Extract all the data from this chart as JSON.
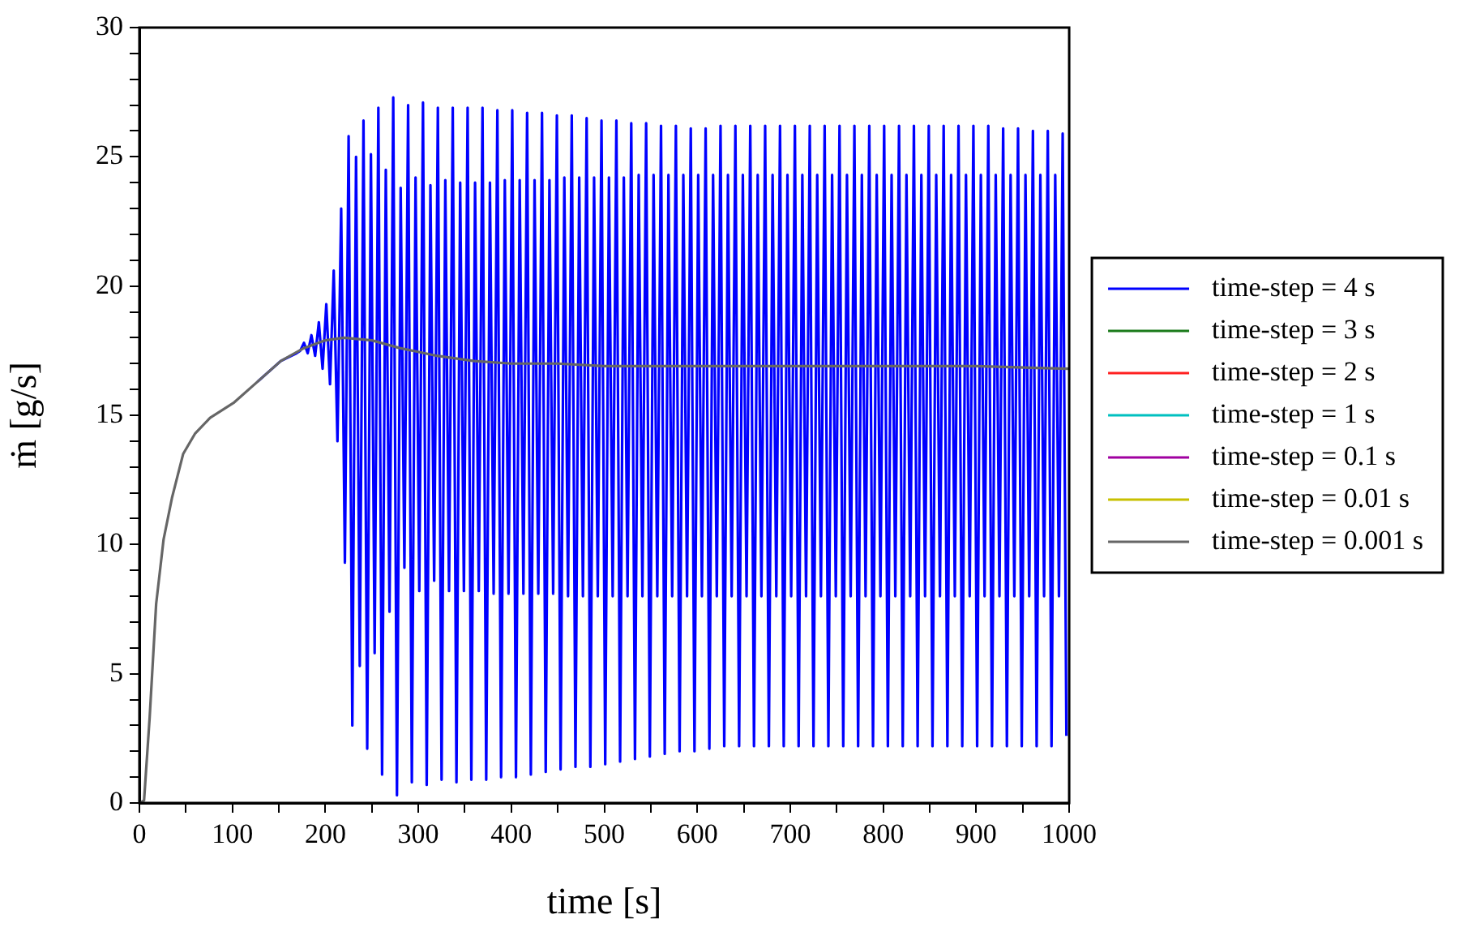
{
  "chart_data": {
    "type": "line",
    "xlabel": "time [s]",
    "ylabel": "ṁ [g/s]",
    "xlim": [
      0,
      1000
    ],
    "ylim": [
      0,
      30
    ],
    "xticks": [
      0,
      {
        "value": 50,
        "label": null
      },
      100,
      {
        "value": 150,
        "label": null
      },
      200,
      {
        "value": 250,
        "label": null
      },
      300,
      {
        "value": 350,
        "label": null
      },
      400,
      {
        "value": 450,
        "label": null
      },
      500,
      {
        "value": 550,
        "label": null
      },
      600,
      {
        "value": 650,
        "label": null
      },
      700,
      {
        "value": 750,
        "label": null
      },
      800,
      {
        "value": 850,
        "label": null
      },
      900,
      {
        "value": 950,
        "label": null
      },
      1000
    ],
    "yticks": [
      0,
      {
        "value": 1,
        "label": null
      },
      {
        "value": 2,
        "label": null
      },
      {
        "value": 3,
        "label": null
      },
      {
        "value": 4,
        "label": null
      },
      5,
      {
        "value": 6,
        "label": null
      },
      {
        "value": 7,
        "label": null
      },
      {
        "value": 8,
        "label": null
      },
      {
        "value": 9,
        "label": null
      },
      10,
      {
        "value": 11,
        "label": null
      },
      {
        "value": 12,
        "label": null
      },
      {
        "value": 13,
        "label": null
      },
      {
        "value": 14,
        "label": null
      },
      15,
      {
        "value": 16,
        "label": null
      },
      {
        "value": 17,
        "label": null
      },
      {
        "value": 18,
        "label": null
      },
      {
        "value": 19,
        "label": null
      },
      20,
      {
        "value": 21,
        "label": null
      },
      {
        "value": 22,
        "label": null
      },
      {
        "value": 23,
        "label": null
      },
      {
        "value": 24,
        "label": null
      },
      25,
      {
        "value": 26,
        "label": null
      },
      {
        "value": 27,
        "label": null
      },
      {
        "value": 28,
        "label": null
      },
      {
        "value": 29,
        "label": null
      },
      30
    ],
    "legend": "right",
    "x": [
      0,
      5,
      11,
      18,
      26,
      35,
      47,
      60,
      76,
      102,
      127,
      152,
      177,
      200,
      220,
      250,
      280,
      320,
      360,
      400,
      450,
      500,
      600,
      700,
      800,
      900,
      1000
    ],
    "series": [
      {
        "name": "time-step = 4 s",
        "color": "#0000ff",
        "x": [
          127,
          152,
          169,
          173,
          177,
          181,
          185,
          189,
          193,
          197,
          201,
          205,
          209,
          213,
          217,
          221,
          225,
          229,
          233,
          237,
          241,
          245,
          249,
          253,
          257,
          261,
          265,
          269,
          273,
          277,
          281,
          285,
          289,
          293,
          297,
          301,
          305,
          309,
          313,
          317,
          321,
          325,
          329,
          333,
          337,
          341,
          345,
          349,
          353,
          357,
          361,
          365,
          369,
          373,
          377,
          381,
          385,
          389,
          393,
          397,
          401,
          405,
          409,
          413,
          417,
          421,
          425,
          429,
          433,
          437,
          441,
          445,
          449,
          453,
          457,
          461,
          465,
          469,
          473,
          477,
          481,
          485,
          489,
          493,
          497,
          501,
          505,
          509,
          513,
          517,
          521,
          525,
          529,
          533,
          537,
          541,
          545,
          549,
          553,
          557,
          561,
          565,
          569,
          573,
          577,
          581,
          585,
          589,
          593,
          597,
          601,
          605,
          609,
          613,
          617,
          621,
          625,
          629,
          633,
          637,
          641,
          645,
          649,
          653,
          657,
          661,
          665,
          669,
          673,
          677,
          681,
          685,
          689,
          693,
          697,
          701,
          705,
          709,
          713,
          717,
          721,
          725,
          729,
          733,
          737,
          741,
          745,
          749,
          753,
          757,
          761,
          765,
          769,
          773,
          777,
          781,
          785,
          789,
          793,
          797,
          801,
          805,
          809,
          813,
          817,
          821,
          825,
          829,
          833,
          837,
          841,
          845,
          849,
          853,
          857,
          861,
          865,
          869,
          873,
          877,
          881,
          885,
          889,
          893,
          897,
          901,
          905,
          909,
          913,
          917,
          921,
          925,
          929,
          933,
          937,
          941,
          945,
          949,
          953,
          957,
          961,
          965,
          969,
          973,
          977,
          981,
          985,
          989,
          993,
          997
        ],
        "values": [
          16.3,
          17.1,
          17.4,
          17.5,
          17.8,
          17.4,
          18.1,
          17.3,
          18.6,
          16.8,
          19.3,
          16.2,
          20.6,
          14.0,
          23.0,
          9.3,
          25.8,
          3.0,
          25.0,
          5.3,
          26.4,
          2.1,
          25.1,
          5.8,
          26.9,
          1.1,
          24.5,
          7.4,
          27.3,
          0.3,
          23.8,
          9.1,
          27.0,
          0.8,
          24.2,
          8.2,
          27.1,
          0.7,
          23.9,
          8.6,
          26.9,
          0.9,
          24.1,
          8.2,
          26.9,
          0.8,
          24.0,
          8.2,
          26.9,
          0.9,
          24.0,
          8.2,
          26.9,
          0.9,
          24.0,
          8.1,
          26.8,
          1.0,
          24.1,
          8.1,
          26.8,
          1.0,
          24.1,
          8.1,
          26.7,
          1.1,
          24.1,
          8.1,
          26.7,
          1.2,
          24.1,
          8.1,
          26.6,
          1.3,
          24.2,
          8.0,
          26.6,
          1.4,
          24.2,
          8.0,
          26.5,
          1.4,
          24.2,
          8.0,
          26.4,
          1.5,
          24.2,
          8.0,
          26.4,
          1.6,
          24.2,
          8.0,
          26.3,
          1.7,
          24.3,
          8.0,
          26.3,
          1.8,
          24.3,
          8.0,
          26.2,
          1.9,
          24.3,
          8.0,
          26.2,
          2.0,
          24.3,
          8.0,
          26.1,
          2.0,
          24.3,
          8.0,
          26.1,
          2.1,
          24.3,
          8.0,
          26.2,
          2.2,
          24.3,
          8.0,
          26.2,
          2.2,
          24.3,
          8.0,
          26.2,
          2.2,
          24.3,
          8.0,
          26.2,
          2.2,
          24.3,
          8.0,
          26.2,
          2.2,
          24.3,
          8.0,
          26.2,
          2.2,
          24.3,
          8.0,
          26.2,
          2.2,
          24.3,
          8.0,
          26.2,
          2.2,
          24.3,
          8.0,
          26.2,
          2.2,
          24.3,
          8.0,
          26.2,
          2.2,
          24.3,
          8.0,
          26.2,
          2.2,
          24.3,
          8.0,
          26.2,
          2.2,
          24.3,
          8.0,
          26.2,
          2.2,
          24.3,
          8.0,
          26.2,
          2.2,
          24.3,
          8.0,
          26.2,
          2.2,
          24.3,
          8.0,
          26.2,
          2.2,
          24.3,
          8.0,
          26.2,
          2.2,
          24.3,
          8.0,
          26.2,
          2.2,
          24.3,
          8.0,
          26.2,
          2.2,
          24.3,
          8.0,
          26.1,
          2.2,
          24.3,
          8.0,
          26.1,
          2.2,
          24.3,
          8.0,
          26.0,
          2.2,
          24.3,
          8.0,
          26.0,
          2.2,
          24.3,
          8.0,
          25.9,
          2.6
        ]
      },
      {
        "name": "time-step = 3 s",
        "color": "#1a7a1a",
        "values": [
          null,
          null,
          null,
          null,
          null,
          null,
          null,
          null,
          null,
          null,
          null,
          null,
          null,
          null,
          null,
          null,
          null,
          null,
          null,
          null,
          null,
          null,
          null,
          null,
          null,
          null,
          null
        ]
      },
      {
        "name": "time-step = 2 s",
        "color": "#ff2020",
        "values": [
          null,
          null,
          null,
          null,
          null,
          null,
          null,
          null,
          null,
          null,
          null,
          null,
          null,
          null,
          null,
          null,
          null,
          null,
          null,
          null,
          null,
          null,
          null,
          null,
          null,
          null,
          null
        ]
      },
      {
        "name": "time-step = 1 s",
        "color": "#00c0c0",
        "values": [
          null,
          null,
          null,
          null,
          null,
          null,
          null,
          null,
          null,
          null,
          null,
          null,
          null,
          null,
          null,
          null,
          null,
          null,
          null,
          null,
          null,
          null,
          null,
          null,
          null,
          null,
          null
        ]
      },
      {
        "name": "time-step = 0.1 s",
        "color": "#a000a0",
        "values": [
          null,
          null,
          null,
          null,
          null,
          null,
          null,
          null,
          null,
          null,
          null,
          null,
          null,
          null,
          null,
          null,
          null,
          null,
          null,
          null,
          null,
          null,
          null,
          null,
          null,
          null,
          null
        ]
      },
      {
        "name": "time-step = 0.01 s",
        "color": "#c8c000",
        "values": [
          null,
          null,
          null,
          null,
          null,
          null,
          null,
          null,
          null,
          null,
          null,
          null,
          null,
          null,
          null,
          null,
          null,
          null,
          null,
          null,
          null,
          null,
          null,
          null,
          null,
          null,
          null
        ]
      },
      {
        "name": "time-step = 0.001 s",
        "color": "#666666",
        "values": [
          0,
          0.1,
          3.3,
          7.7,
          10.2,
          11.8,
          13.5,
          14.3,
          14.9,
          15.5,
          16.3,
          17.1,
          17.6,
          17.9,
          18.0,
          17.9,
          17.6,
          17.3,
          17.1,
          17.0,
          17.0,
          16.9,
          16.9,
          16.9,
          16.9,
          16.9,
          16.8
        ]
      }
    ]
  }
}
